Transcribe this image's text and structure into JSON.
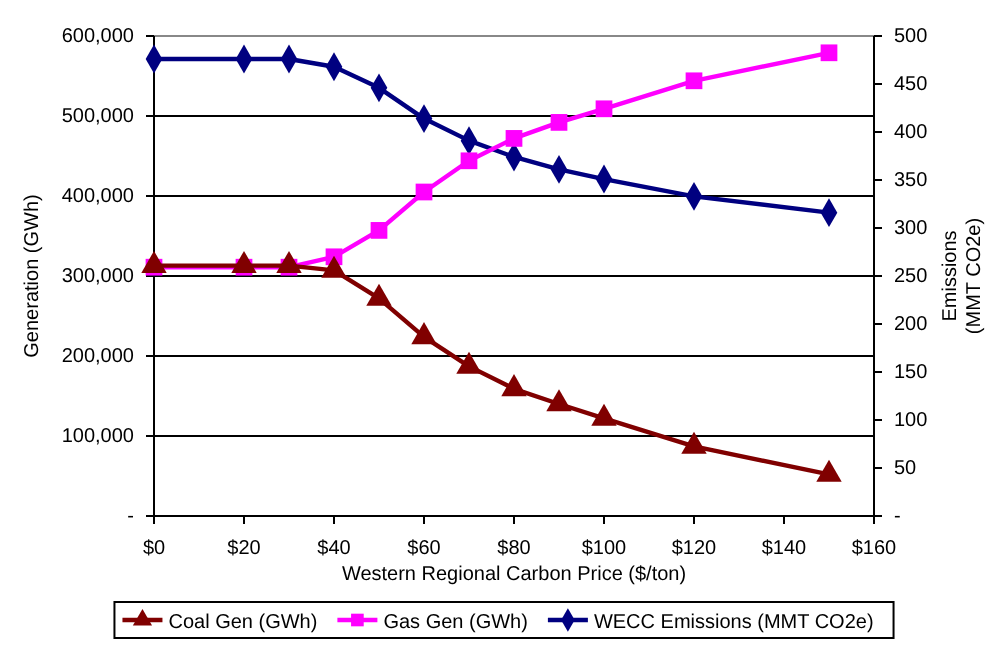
{
  "chart_data": {
    "type": "line",
    "x": [
      0,
      20,
      30,
      40,
      50,
      60,
      70,
      80,
      90,
      100,
      120,
      150
    ],
    "series": [
      {
        "name": "Coal Gen (GWh)",
        "color": "#800000",
        "marker": "triangle",
        "values": [
          313000,
          313000,
          313000,
          307000,
          272000,
          224000,
          187000,
          159000,
          140000,
          122000,
          87000,
          52000
        ]
      },
      {
        "name": "Gas Gen (GWh)",
        "color": "#ff00ff",
        "marker": "square",
        "values": [
          311000,
          311000,
          311000,
          324000,
          357000,
          405000,
          444000,
          472000,
          492000,
          509000,
          544000,
          579000
        ]
      },
      {
        "name": "WECC Emissions (MMT CO2e)",
        "color": "#000080",
        "marker": "diamond",
        "axis": "y2",
        "values": [
          476,
          476,
          476,
          468,
          446,
          414,
          391,
          374,
          361,
          351,
          333,
          316
        ]
      }
    ],
    "xlabel": "Western Regional Carbon Price ($/ton)",
    "ylabel": "Generation (GWh)",
    "y2label": "Emissions (MMT CO2e)",
    "xlim": [
      0,
      160
    ],
    "xticks": [
      {
        "value": 0,
        "label": "$0"
      },
      {
        "value": 20,
        "label": "$20"
      },
      {
        "value": 40,
        "label": "$40"
      },
      {
        "value": 60,
        "label": "$60"
      },
      {
        "value": 80,
        "label": "$80"
      },
      {
        "value": 100,
        "label": "$100"
      },
      {
        "value": 120,
        "label": "$120"
      },
      {
        "value": 140,
        "label": "$140"
      },
      {
        "value": 160,
        "label": "$160"
      }
    ],
    "ylim": [
      0,
      600000
    ],
    "yticks": [
      {
        "value": 0,
        "label": "-"
      },
      {
        "value": 100000,
        "label": "100,000"
      },
      {
        "value": 200000,
        "label": "200,000"
      },
      {
        "value": 300000,
        "label": "300,000"
      },
      {
        "value": 400000,
        "label": "400,000"
      },
      {
        "value": 500000,
        "label": "500,000"
      },
      {
        "value": 600000,
        "label": "600,000"
      }
    ],
    "y2lim": [
      0,
      500
    ],
    "y2ticks": [
      {
        "value": 0,
        "label": "-"
      },
      50,
      100,
      150,
      200,
      250,
      300,
      350,
      400,
      450,
      500
    ],
    "grid": "y",
    "legend": "bottom"
  }
}
